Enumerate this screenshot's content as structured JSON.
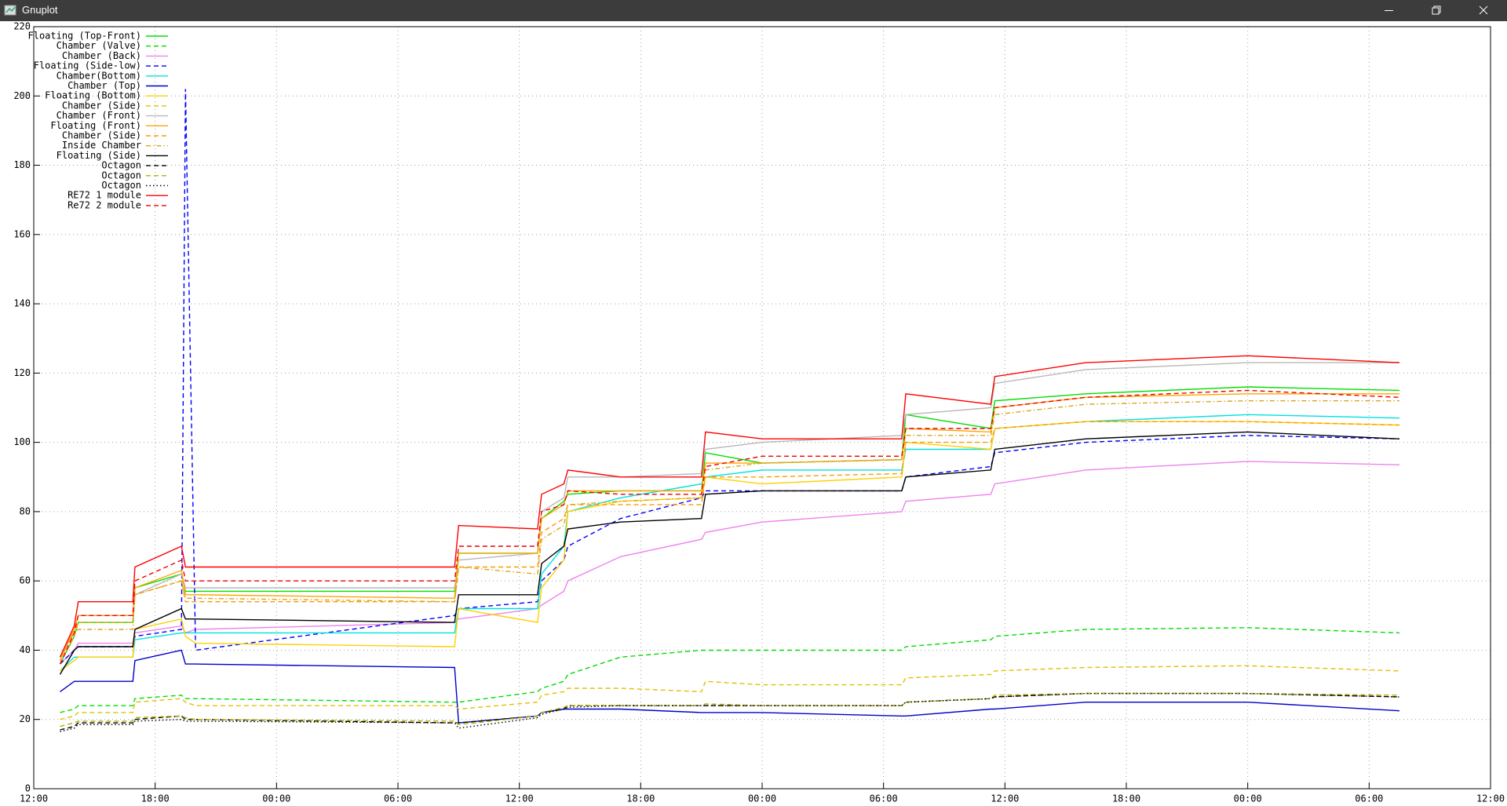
{
  "window": {
    "title": "Gnuplot"
  },
  "chart_data": {
    "type": "line",
    "x": [
      1.3,
      2.0,
      2.2,
      4.9,
      5.0,
      7.3,
      7.5,
      8.0,
      20.8,
      21.0,
      24.9,
      25.1,
      26.2,
      26.4,
      29,
      33.0,
      33.2,
      36,
      42.9,
      43.1,
      47.3,
      47.5,
      52,
      60,
      67.5
    ],
    "xlim": [
      0,
      72
    ],
    "xticks": [
      {
        "value": 0,
        "label": "12:00"
      },
      {
        "value": 6,
        "label": "18:00"
      },
      {
        "value": 12,
        "label": "00:00"
      },
      {
        "value": 18,
        "label": "06:00"
      },
      {
        "value": 24,
        "label": "12:00"
      },
      {
        "value": 30,
        "label": "18:00"
      },
      {
        "value": 36,
        "label": "00:00"
      },
      {
        "value": 42,
        "label": "06:00"
      },
      {
        "value": 48,
        "label": "12:00"
      },
      {
        "value": 54,
        "label": "18:00"
      },
      {
        "value": 60,
        "label": "00:00"
      },
      {
        "value": 66,
        "label": "06:00"
      },
      {
        "value": 72,
        "label": "12:00"
      }
    ],
    "ylim": [
      0,
      220
    ],
    "yticks": [
      0,
      20,
      40,
      60,
      80,
      100,
      120,
      140,
      160,
      180,
      200,
      220
    ],
    "grid": true,
    "legend": "top-left",
    "series": [
      {
        "name": "Floating (Top-Front)",
        "color": "#00e000",
        "dash": "solid",
        "values": [
          36,
          44,
          48,
          48,
          58,
          62,
          57,
          57,
          57,
          68,
          68,
          78,
          83,
          85,
          86,
          86,
          97,
          94,
          95,
          108,
          104,
          112,
          114,
          116,
          115
        ]
      },
      {
        "name": "Chamber (Valve)",
        "color": "#00dd00",
        "dash": "dashed",
        "values": [
          22,
          23,
          24,
          24,
          26,
          27,
          26,
          26,
          25,
          25,
          28,
          29,
          31,
          33,
          38,
          40,
          40,
          40,
          40,
          41,
          43,
          44,
          46,
          46.5,
          45
        ]
      },
      {
        "name": "Chamber (Back)",
        "color": "#ee82ee",
        "dash": "solid",
        "values": [
          36,
          40,
          42,
          42,
          45,
          47,
          45,
          46,
          48,
          49,
          52,
          53,
          57,
          60,
          67,
          72,
          74,
          77,
          80,
          83,
          85,
          88,
          92,
          94.5,
          93.5
        ]
      },
      {
        "name": "Floating (Side-low)",
        "color": "#0000ff",
        "dash": "dashed",
        "values": [
          36,
          40,
          41,
          41,
          44,
          46,
          202,
          40,
          50,
          52,
          54,
          60,
          66,
          70,
          78,
          84,
          86,
          86,
          86,
          90,
          93,
          97,
          100,
          102,
          101
        ]
      },
      {
        "name": "Chamber(Bottom)",
        "color": "#00e0e0",
        "dash": "solid",
        "values": [
          34,
          38,
          38,
          38,
          43,
          45,
          45,
          45,
          45,
          52,
          52,
          62,
          70,
          80,
          84,
          88,
          90,
          92,
          92,
          98,
          98,
          104,
          106,
          108,
          107
        ]
      },
      {
        "name": "Chamber (Top)",
        "color": "#0000cd",
        "dash": "solid",
        "values": [
          28,
          31,
          31,
          31,
          37,
          40,
          36,
          36,
          35,
          19,
          21,
          22,
          23,
          23,
          23,
          22,
          22,
          22,
          21,
          21,
          23,
          23,
          25,
          25,
          22.5
        ]
      },
      {
        "name": "Floating (Bottom)",
        "color": "#ffd000",
        "dash": "solid",
        "values": [
          34,
          37,
          38,
          38,
          46,
          49,
          44,
          42,
          41,
          52,
          48,
          58,
          66,
          80,
          83,
          84,
          90,
          88,
          90,
          100,
          98,
          104,
          106,
          106,
          105
        ]
      },
      {
        "name": "Chamber (Side)",
        "color": "#e0c000",
        "dash": "dashed",
        "values": [
          20,
          21,
          22,
          22,
          25,
          26,
          25,
          24,
          24,
          23,
          25,
          27,
          28,
          29,
          29,
          28,
          31,
          30,
          30,
          32,
          33,
          34,
          35,
          35.5,
          34
        ]
      },
      {
        "name": "Chamber (Front)",
        "color": "#b8b8b8",
        "dash": "solid",
        "values": [
          38,
          46,
          50,
          50,
          56,
          62,
          58,
          58,
          58,
          66,
          68,
          80,
          84,
          90,
          90,
          91,
          98,
          100,
          102,
          108,
          110,
          117,
          121,
          123,
          123
        ]
      },
      {
        "name": "Floating (Front)",
        "color": "#ffa500",
        "dash": "solid",
        "values": [
          37,
          46,
          50,
          50,
          58,
          63,
          56,
          56,
          55,
          68,
          68,
          78,
          82,
          86,
          86,
          86,
          94,
          94,
          95,
          104,
          103,
          110,
          113,
          114,
          114
        ]
      },
      {
        "name": "Chamber (Side)",
        "color": "#ff9900",
        "dash": "dashed",
        "values": [
          36,
          44,
          48,
          48,
          56,
          60,
          54,
          54,
          54,
          64,
          64,
          74,
          78,
          82,
          82,
          82,
          90,
          90,
          91,
          100,
          100,
          104,
          106,
          106,
          105
        ]
      },
      {
        "name": "Inside Chamber",
        "color": "#daa520",
        "dash": "dashdot",
        "values": [
          38,
          45,
          46,
          46,
          56,
          60,
          55,
          55,
          54,
          64,
          62,
          72,
          76,
          82,
          83,
          84,
          92,
          94,
          95,
          102,
          102,
          108,
          111,
          112,
          112
        ]
      },
      {
        "name": "Floating (Side)",
        "color": "#000000",
        "dash": "solid",
        "values": [
          33,
          40,
          41,
          41,
          46,
          52,
          49,
          49,
          48,
          56,
          56,
          65,
          70,
          75,
          77,
          78,
          85,
          86,
          86,
          90,
          92,
          98,
          101,
          103,
          101
        ]
      },
      {
        "name": "Octagon",
        "color": "#000000",
        "dash": "dashed",
        "values": [
          17,
          18,
          19,
          19,
          20,
          21,
          20,
          20,
          19,
          19,
          21,
          22,
          23,
          24,
          24,
          24,
          24,
          24,
          24,
          25,
          26,
          26.5,
          27.5,
          27.5,
          26.5
        ]
      },
      {
        "name": "Octagon",
        "color": "#b0b000",
        "dash": "dashed",
        "values": [
          18,
          19,
          19.5,
          19.5,
          20.5,
          21,
          20.5,
          20,
          19.5,
          18.5,
          21,
          22,
          23.5,
          24,
          24,
          24,
          24.5,
          24,
          24,
          25,
          26,
          27,
          27.5,
          27.5,
          27
        ]
      },
      {
        "name": "Octagon",
        "color": "#000000",
        "dash": "dotted",
        "values": [
          16.5,
          17.5,
          18.5,
          18.5,
          19.5,
          20,
          19.5,
          19.5,
          19,
          17.5,
          20.5,
          21.5,
          23,
          23.5,
          24,
          24,
          24,
          24,
          24,
          25,
          26,
          26.5,
          27.5,
          27.5,
          26.5
        ]
      },
      {
        "name": "RE72 1 module",
        "color": "#ff0000",
        "dash": "solid",
        "values": [
          38,
          47,
          54,
          54,
          64,
          70,
          64,
          64,
          64,
          76,
          75,
          85,
          88,
          92,
          90,
          90,
          103,
          101,
          101,
          114,
          111,
          119,
          123,
          125,
          123
        ]
      },
      {
        "name": "Re72 2 module",
        "color": "#ee0000",
        "dash": "dashed",
        "values": [
          36,
          45,
          50,
          50,
          60,
          66,
          60,
          60,
          60,
          70,
          70,
          80,
          82,
          86,
          85,
          85,
          93,
          96,
          96,
          104,
          104,
          110,
          113,
          115,
          113
        ]
      }
    ]
  }
}
